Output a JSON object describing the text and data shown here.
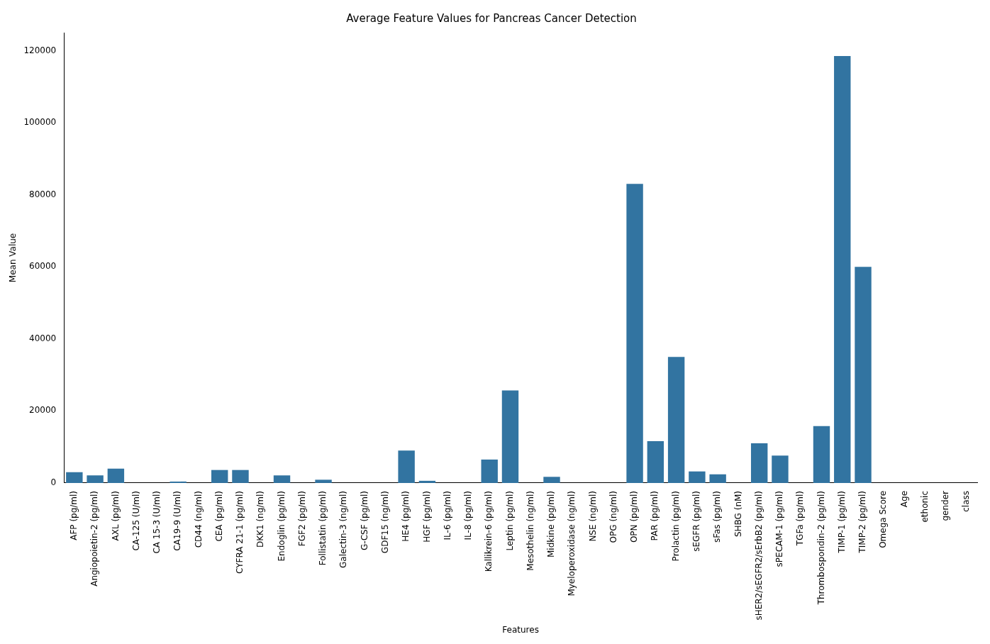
{
  "chart_data": {
    "type": "bar",
    "title": "Average Feature Values for Pancreas Cancer Detection",
    "xlabel": "Features",
    "ylabel": "Mean Value",
    "color": "#3274a1",
    "categories": [
      "AFP (pg/ml)",
      "Angiopoietin-2 (pg/ml)",
      "AXL (pg/ml)",
      "CA-125 (U/ml)",
      "CA 15-3 (U/ml)",
      "CA19-9 (U/ml)",
      "CD44 (ng/ml)",
      "CEA (pg/ml)",
      "CYFRA 21-1 (pg/ml)",
      "DKK1 (ng/ml)",
      "Endoglin (pg/ml)",
      "FGF2 (pg/ml)",
      "Follistatin (pg/ml)",
      "Galectin-3 (ng/ml)",
      "G-CSF (pg/ml)",
      "GDF15 (ng/ml)",
      "HE4 (pg/ml)",
      "HGF (pg/ml)",
      "IL-6 (pg/ml)",
      "IL-8 (pg/ml)",
      "Kallikrein-6 (pg/ml)",
      "Leptin (pg/ml)",
      "Mesothelin (ng/ml)",
      "Midkine (pg/ml)",
      "Myeloperoxidase (ng/ml)",
      "NSE (ng/ml)",
      "OPG (ng/ml)",
      "OPN (pg/ml)",
      "PAR (pg/ml)",
      "Prolactin (pg/ml)",
      "sEGFR (pg/ml)",
      "sFas (pg/ml)",
      "SHBG (nM)",
      "sHER2/sEGFR2/sErbB2 (pg/ml)",
      "sPECAM-1 (pg/ml)",
      "TGFa (pg/ml)",
      "Thrombospondin-2 (pg/ml)",
      "TIMP-1 (pg/ml)",
      "TIMP-2 (pg/ml)",
      "Omega Score",
      "Age",
      "ethonic",
      "gender",
      "class"
    ],
    "values": [
      3000,
      2100,
      4000,
      0,
      0,
      400,
      0,
      3600,
      3600,
      0,
      2100,
      0,
      900,
      0,
      0,
      0,
      9000,
      600,
      0,
      0,
      6500,
      25700,
      0,
      1700,
      0,
      0,
      0,
      83000,
      11600,
      35000,
      3200,
      2400,
      0,
      11000,
      7600,
      0,
      15800,
      118500,
      60000,
      0,
      0,
      0,
      0,
      0
    ],
    "ylim": [
      0,
      125000
    ],
    "yticks": [
      0,
      20000,
      40000,
      60000,
      80000,
      100000,
      120000
    ],
    "grid": false,
    "legend": false
  }
}
